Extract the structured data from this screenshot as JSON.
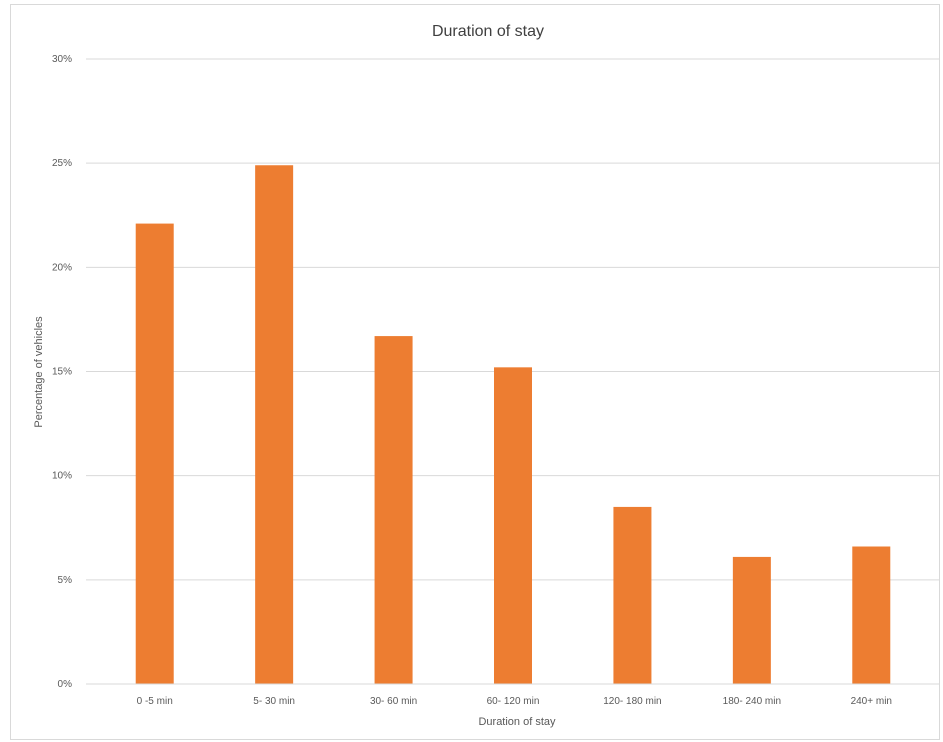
{
  "chart_data": {
    "type": "bar",
    "title": "Duration of stay",
    "xlabel": "Duration of stay",
    "ylabel": "Percentage of vehicles",
    "categories": [
      "0 -5 min",
      "5- 30 min",
      "30- 60 min",
      "60- 120 min",
      "120- 180 min",
      "180- 240 min",
      "240+ min"
    ],
    "values": [
      22.1,
      24.9,
      16.7,
      15.2,
      8.5,
      6.1,
      6.6
    ],
    "ylim": [
      0,
      30
    ],
    "yticks": [
      0,
      5,
      10,
      15,
      20,
      25,
      30
    ],
    "ytick_labels": [
      "0%",
      "5%",
      "10%",
      "15%",
      "20%",
      "25%",
      "30%"
    ],
    "grid": true,
    "legend": "none",
    "colors": {
      "bar": "#ED7D31",
      "grid": "#D9D9D9",
      "text": "#595959"
    }
  }
}
